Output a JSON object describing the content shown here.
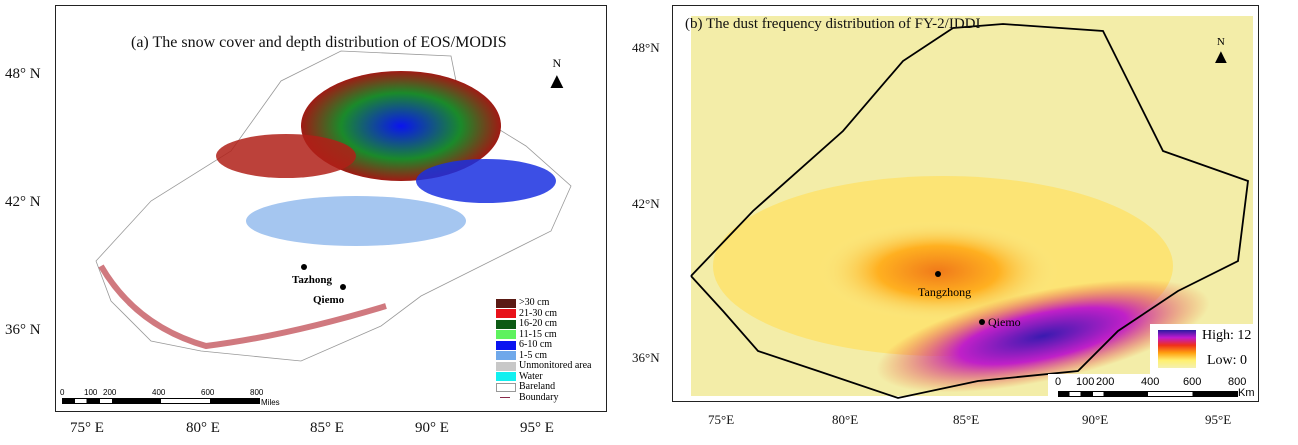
{
  "panel_a": {
    "title": "(a) The snow cover and depth distribution of EOS/MODIS",
    "lat_ticks": [
      "48° N",
      "42° N",
      "36° N"
    ],
    "lon_ticks": [
      "75° E",
      "80° E",
      "85° E",
      "90° E",
      "95° E"
    ],
    "north": "N",
    "places": [
      "Tazhong",
      "Qiemo"
    ],
    "legend": [
      {
        "label": ">30 cm",
        "color": "#5a1a14"
      },
      {
        "label": "21-30 cm",
        "color": "#e8121a"
      },
      {
        "label": "16-20 cm",
        "color": "#0c5a14"
      },
      {
        "label": "11-15 cm",
        "color": "#5ef25e"
      },
      {
        "label": "6-10 cm",
        "color": "#0a14f0"
      },
      {
        "label": "1-5 cm",
        "color": "#6fa8ea"
      },
      {
        "label": "Unmonitored area",
        "color": "#c8c8c8"
      },
      {
        "label": "Water",
        "color": "#12f0f0"
      },
      {
        "label": "Bareland",
        "color": "#ffffff"
      },
      {
        "label": "Boundary",
        "color": "#8a2a4a"
      }
    ],
    "scale_ticks": [
      "0",
      "100",
      "200",
      "400",
      "600",
      "800"
    ],
    "scale_unit": "Miles"
  },
  "panel_b": {
    "title": "(b)  The dust frequency distribution of FY-2/IDDI",
    "lat_ticks": [
      "48°N",
      "42°N",
      "36°N"
    ],
    "lon_ticks": [
      "75°E",
      "80°E",
      "85°E",
      "90°E",
      "95°E"
    ],
    "north": "N",
    "places": [
      "Tangzhong",
      "Qiemo"
    ],
    "legend": {
      "high": "High: 12",
      "low": "Low: 0",
      "colors": [
        "#2a1aa0",
        "#c01ad0",
        "#f0301a",
        "#ffa010",
        "#fff070",
        "#f4f0b0"
      ]
    },
    "scale_ticks": [
      "0",
      "100",
      "200",
      "400",
      "600",
      "800"
    ],
    "scale_unit": "Km"
  }
}
